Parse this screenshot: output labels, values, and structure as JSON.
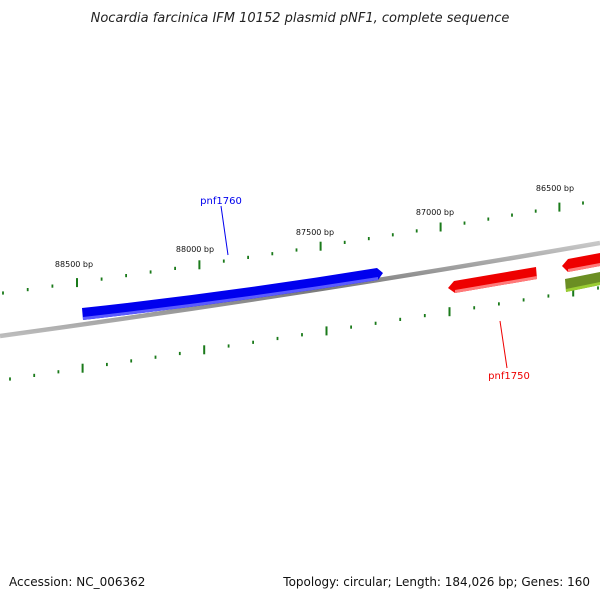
{
  "title": "Nocardia farcinica IFM 10152 plasmid pNF1, complete sequence",
  "position_labels": [
    "86500 bp",
    "87000 bp",
    "87500 bp",
    "88000 bp",
    "88500 bp"
  ],
  "genes": [
    {
      "name": "pnf1760",
      "strand": "forward",
      "color": "#0000ee",
      "labeled": true
    },
    {
      "name": "pnf1750",
      "strand": "reverse",
      "color": "#ee0000",
      "labeled": true
    },
    {
      "name": "",
      "strand": "forward",
      "color": "#ee0000",
      "labeled": false
    },
    {
      "name": "",
      "strand": "reverse",
      "color": "#6b8e23",
      "labeled": false
    }
  ],
  "colors": {
    "backbone": "#8a8a8a",
    "tick": "#1a7a1a",
    "forward_gene": "#0000ee",
    "reverse_gene": "#ee0000",
    "other_gene": "#6b8e23"
  },
  "footer": {
    "accession": "Accession: NC_006362",
    "summary": "Topology: circular; Length: 184,026 bp; Genes: 160"
  }
}
